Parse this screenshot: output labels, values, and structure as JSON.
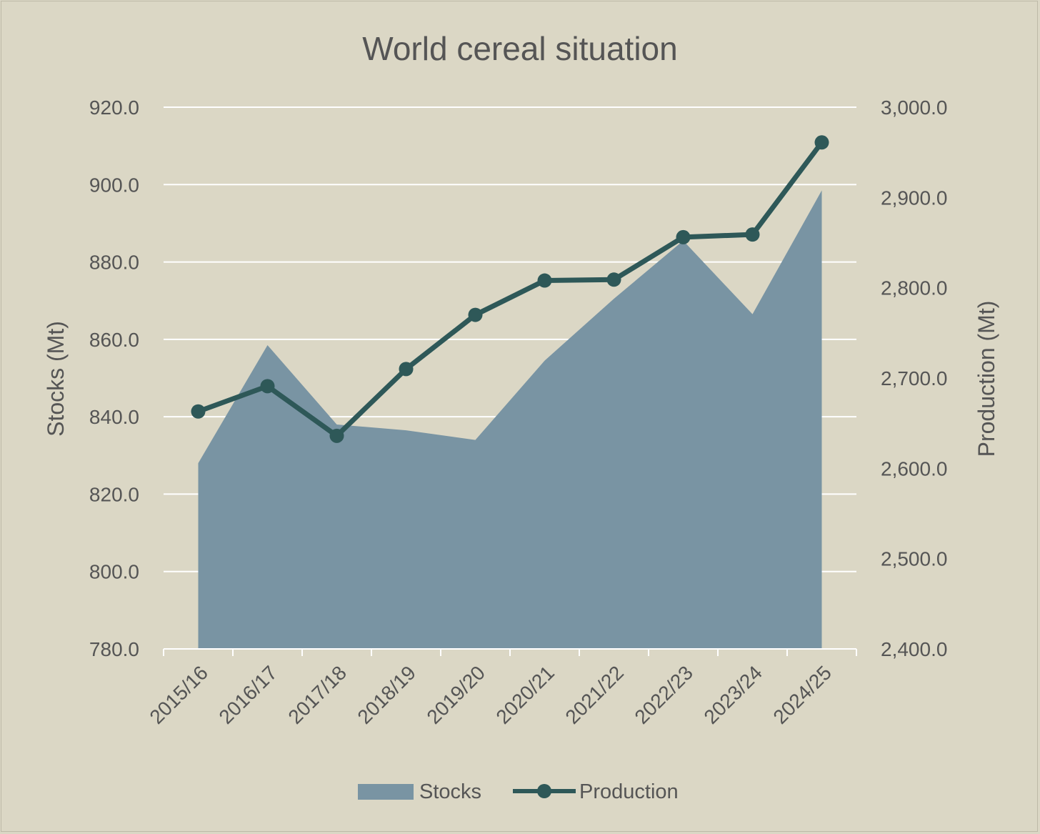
{
  "chart_data": {
    "type": "area+line",
    "title": "World cereal situation",
    "categories": [
      "2015/16",
      "2016/17",
      "2017/18",
      "2018/19",
      "2019/20",
      "2020/21",
      "2021/22",
      "2022/23",
      "2023/24",
      "2024/25"
    ],
    "series": [
      {
        "name": "Stocks",
        "type": "area",
        "axis": "left",
        "color": "#7994a3",
        "values": [
          828.0,
          858.5,
          838.0,
          836.5,
          834.0,
          854.5,
          870.5,
          885.5,
          866.5,
          898.5
        ]
      },
      {
        "name": "Production",
        "type": "line",
        "axis": "right",
        "color": "#2e5858",
        "values": [
          2663,
          2691,
          2636,
          2710,
          2770,
          2808,
          2809,
          2856,
          2859,
          2961
        ]
      }
    ],
    "y_left": {
      "label": "Stocks (Mt)",
      "min": 780,
      "max": 920,
      "step": 20,
      "ticks": [
        "920.0",
        "900.0",
        "880.0",
        "860.0",
        "840.0",
        "820.0",
        "800.0",
        "780.0"
      ]
    },
    "y_right": {
      "label": "Production (Mt)",
      "min": 2400,
      "max": 3000,
      "step": 100,
      "ticks": [
        "3,000.0",
        "2,900.0",
        "2,800.0",
        "2,700.0",
        "2,600.0",
        "2,500.0",
        "2,400.0"
      ]
    },
    "grid": true,
    "legend": "bottom",
    "colors": {
      "background": "#dbd7c5",
      "gridline": "#ffffff",
      "text": "#555555"
    }
  }
}
